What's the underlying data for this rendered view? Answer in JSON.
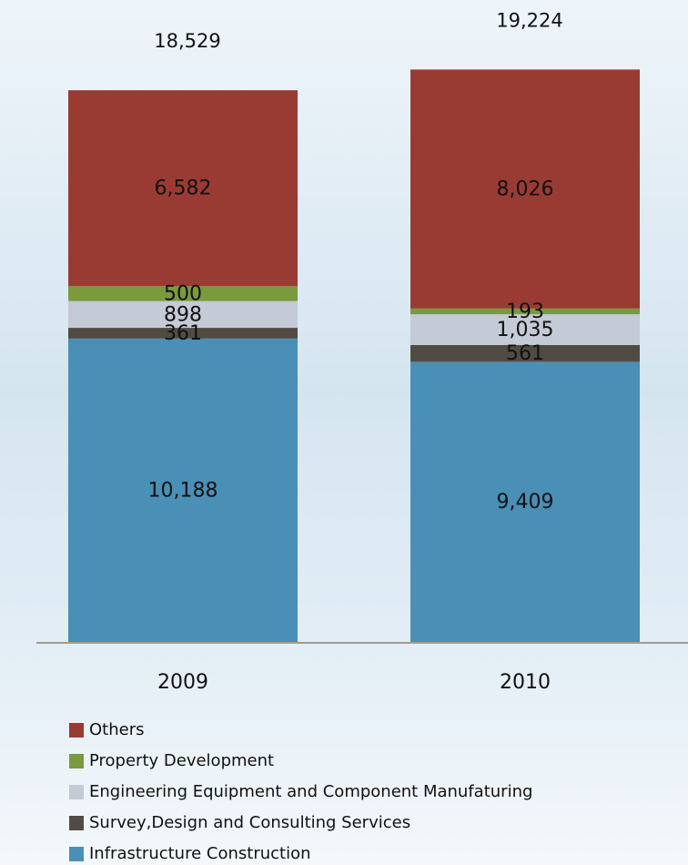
{
  "chart_data": {
    "type": "stacked-bar",
    "categories": [
      "2009",
      "2010"
    ],
    "series": [
      {
        "name": "Infrastructure Construction",
        "color": "#4a8fb5",
        "values": [
          10188,
          9409
        ],
        "value_labels": [
          "10,188",
          "9,409"
        ]
      },
      {
        "name": "Survey,Design and Consulting Services",
        "color": "#524b44",
        "values": [
          361,
          561
        ],
        "value_labels": [
          "361",
          "561"
        ]
      },
      {
        "name": "Engineering Equipment and Component Manufaturing",
        "color": "#c4cad6",
        "values": [
          898,
          1035
        ],
        "value_labels": [
          "898",
          "1,035"
        ]
      },
      {
        "name": "Property Development",
        "color": "#7a9a3e",
        "values": [
          500,
          193
        ],
        "value_labels": [
          "500",
          "193"
        ]
      },
      {
        "name": "Others",
        "color": "#9a3b33",
        "values": [
          6582,
          8026
        ],
        "value_labels": [
          "6,582",
          "8,026"
        ]
      }
    ],
    "totals": [
      18529,
      19224
    ],
    "total_labels": [
      "18,529",
      "19,224"
    ]
  }
}
